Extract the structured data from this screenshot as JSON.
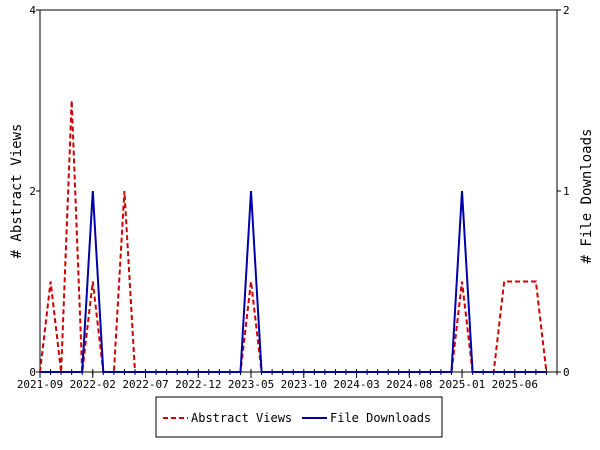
{
  "chart_data": {
    "type": "line",
    "title": "",
    "ylabel_left": "# Abstract Views",
    "ylabel_right": "# File Downloads",
    "ylim_left": [
      0,
      4
    ],
    "ylim_right": [
      0,
      2
    ],
    "yticks_left": [
      "0",
      "2",
      "4"
    ],
    "yticks_right": [
      "0",
      "1",
      "2"
    ],
    "xlim_months": [
      "2021-09",
      "2025-10"
    ],
    "xtick_labels": [
      "2021-09",
      "2022-02",
      "2022-07",
      "2022-12",
      "2023-05",
      "2023-10",
      "2024-03",
      "2024-08",
      "2025-01",
      "2025-06"
    ],
    "x": [
      "2021-09",
      "2021-10",
      "2021-11",
      "2021-12",
      "2022-01",
      "2022-02",
      "2022-03",
      "2022-04",
      "2022-05",
      "2022-06",
      "2022-07",
      "2022-08",
      "2022-09",
      "2022-10",
      "2022-11",
      "2022-12",
      "2023-01",
      "2023-02",
      "2023-03",
      "2023-04",
      "2023-05",
      "2023-06",
      "2023-07",
      "2023-08",
      "2023-09",
      "2023-10",
      "2023-11",
      "2023-12",
      "2024-01",
      "2024-02",
      "2024-03",
      "2024-04",
      "2024-05",
      "2024-06",
      "2024-07",
      "2024-08",
      "2024-09",
      "2024-10",
      "2024-11",
      "2024-12",
      "2025-01",
      "2025-02",
      "2025-03",
      "2025-04",
      "2025-05",
      "2025-06",
      "2025-07",
      "2025-08",
      "2025-09"
    ],
    "series": [
      {
        "name": "Abstract Views",
        "axis": "left",
        "color": "#cc0000",
        "style": "dashed",
        "values": [
          0,
          1,
          0,
          3,
          0,
          1,
          0,
          0,
          2,
          0,
          0,
          0,
          0,
          0,
          0,
          0,
          0,
          0,
          0,
          0,
          1,
          0,
          0,
          0,
          0,
          0,
          0,
          0,
          0,
          0,
          0,
          0,
          0,
          0,
          0,
          0,
          0,
          0,
          0,
          0,
          1,
          0,
          0,
          0,
          1,
          1,
          1,
          1,
          0
        ]
      },
      {
        "name": "File Downloads",
        "axis": "right",
        "color": "#0000aa",
        "style": "solid",
        "values": [
          0,
          0,
          0,
          0,
          0,
          1,
          0,
          0,
          0,
          0,
          0,
          0,
          0,
          0,
          0,
          0,
          0,
          0,
          0,
          0,
          1,
          0,
          0,
          0,
          0,
          0,
          0,
          0,
          0,
          0,
          0,
          0,
          0,
          0,
          0,
          0,
          0,
          0,
          0,
          0,
          1,
          0,
          0,
          0,
          0,
          0,
          0,
          0,
          0
        ]
      }
    ],
    "legend_position": "bottom-center",
    "grid": false
  }
}
